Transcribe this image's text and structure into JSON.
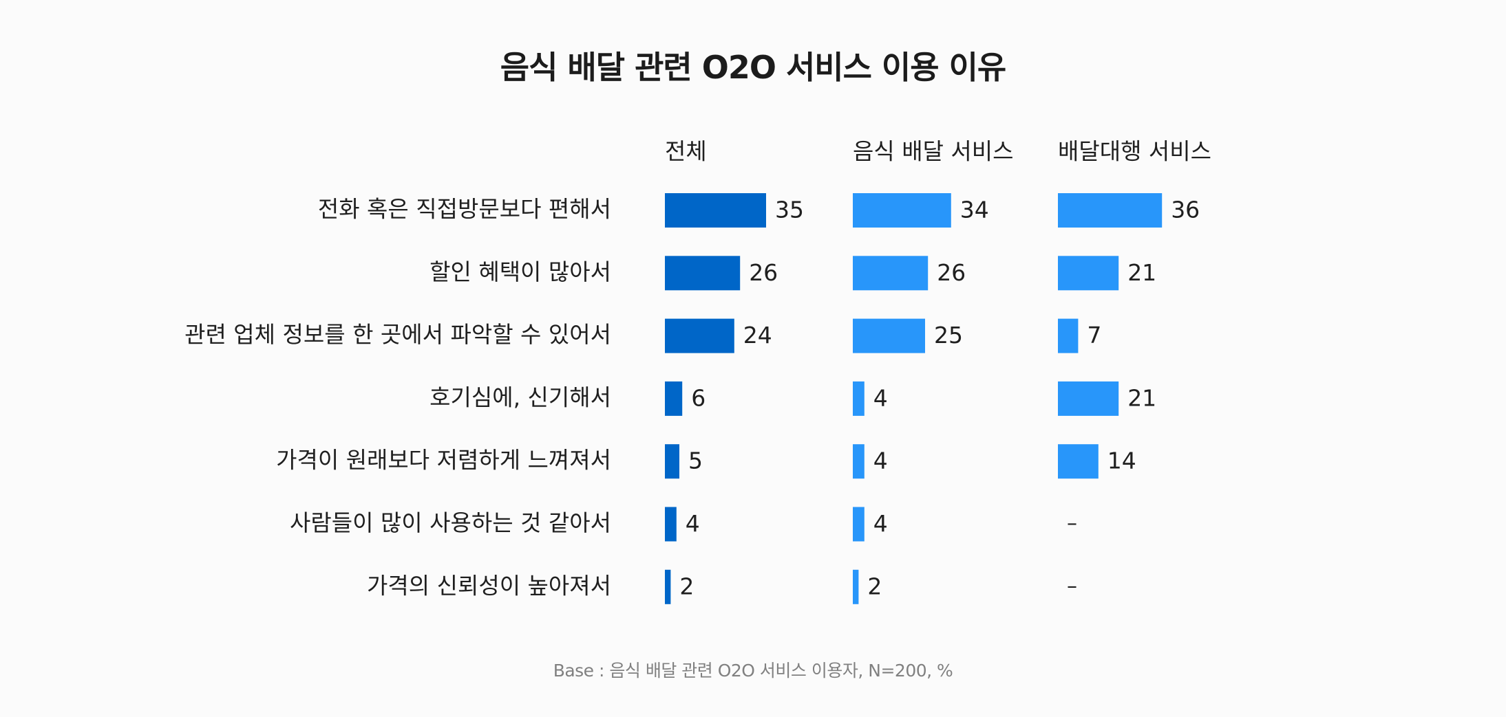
{
  "chart_data": {
    "type": "bar",
    "orientation": "horizontal",
    "title": "음식 배달 관련 O2O 서비스 이용 이유",
    "footnote": "Base : 음식 배달 관련 O2O 서비스 이용자, N=200, %",
    "categories": [
      "전화 혹은 직접방문보다 편해서",
      "할인 혜택이 많아서",
      "관련 업체 정보를 한 곳에서 파악할 수 있어서",
      "호기심에, 신기해서",
      "가격이 원래보다 저렴하게 느껴져서",
      "사람들이 많이 사용하는 것 같아서",
      "가격의 신뢰성이 높아져서"
    ],
    "series": [
      {
        "name": "전체",
        "values": [
          35,
          26,
          24,
          6,
          5,
          4,
          2
        ],
        "color": "#0066c8"
      },
      {
        "name": "음식 배달 서비스",
        "values": [
          34,
          26,
          25,
          4,
          4,
          4,
          2
        ],
        "color": "#2896fa"
      },
      {
        "name": "배달대행 서비스",
        "values": [
          36,
          21,
          7,
          21,
          14,
          null,
          null
        ],
        "color": "#2896fa"
      }
    ],
    "missing_label": "–",
    "grid": false
  }
}
